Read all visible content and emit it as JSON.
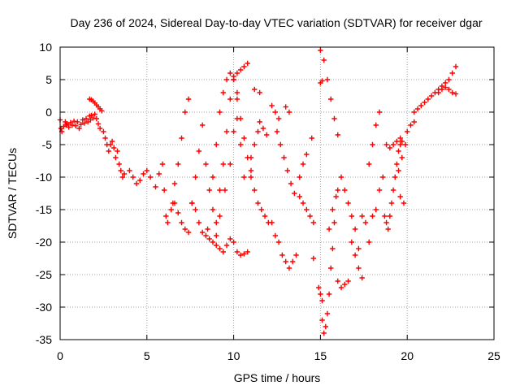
{
  "chart_data": {
    "type": "scatter",
    "title": "Day 236 of 2024, Sidereal Day-to-day VTEC variation (SDTVAR) for receiver dgar",
    "xlabel": "GPS time / hours",
    "ylabel": "SDTVAR / TECUs",
    "xlim": [
      0,
      25
    ],
    "ylim": [
      -35,
      10
    ],
    "xticks": [
      "0",
      "5",
      "10",
      "15",
      "20",
      "25"
    ],
    "yticks": [
      "10",
      "5",
      "0",
      "-5",
      "-10",
      "-15",
      "-20",
      "-25",
      "-30",
      "-35"
    ],
    "grid": true,
    "marker": "plus",
    "color": "#ff0000",
    "series": [
      {
        "x": [
          0.0,
          0.05,
          0.1,
          0.2,
          0.3,
          0.35,
          0.4,
          0.5,
          0.6,
          0.7,
          0.8,
          0.9,
          1.0,
          1.1,
          1.2,
          1.3,
          1.4,
          1.5,
          1.6,
          1.7,
          1.75,
          1.8,
          1.9,
          2.0,
          2.1,
          2.2,
          2.3
        ],
        "y": [
          -1.2,
          -2.5,
          -3.0,
          -2.2,
          -1.5,
          -2.0,
          -1.8,
          -2.3,
          -1.6,
          -2.0,
          -1.4,
          -2.1,
          -1.5,
          -2.5,
          -1.9,
          -1.2,
          -1.7,
          -1.0,
          -1.5,
          -0.6,
          -1.2,
          -0.5,
          -0.9,
          -0.3,
          -1.0,
          -1.8,
          -2.5
        ]
      },
      {
        "x": [
          1.7,
          1.8,
          1.9,
          2.0,
          2.1,
          2.2,
          2.3,
          2.4
        ],
        "y": [
          2.0,
          1.9,
          1.7,
          1.4,
          1.1,
          0.8,
          0.5,
          0.2
        ]
      },
      {
        "x": [
          2.5,
          2.6,
          2.7,
          2.8,
          2.9,
          3.0,
          3.1,
          3.2,
          3.3,
          3.4,
          3.5,
          3.6,
          3.7
        ],
        "y": [
          -3.0,
          -4.0,
          -5.0,
          -6.0,
          -5.0,
          -4.5,
          -5.5,
          -7.0,
          -6.0,
          -8.0,
          -9.0,
          -10.0,
          -9.5
        ]
      },
      {
        "x": [
          4.0,
          4.2,
          4.4,
          4.6,
          4.8,
          5.0,
          5.2,
          5.5,
          5.7,
          5.9
        ],
        "y": [
          -9.0,
          -10.0,
          -11.0,
          -10.5,
          -9.5,
          -9.0,
          -10.0,
          -11.5,
          -9.5,
          -8.0
        ]
      },
      {
        "x": [
          6.0,
          6.1,
          6.2,
          6.4,
          6.6,
          6.8,
          7.0,
          7.2,
          7.4,
          7.6,
          7.8,
          8.0,
          8.2,
          8.4,
          8.6,
          8.8,
          9.0,
          9.2,
          9.4,
          9.6,
          9.8,
          10.0,
          10.2,
          10.4,
          10.6,
          10.8
        ],
        "y": [
          -12.0,
          -16.0,
          -17.0,
          -15.0,
          -14.0,
          -15.5,
          -17.0,
          -18.0,
          -18.5,
          -14.0,
          -15.0,
          -17.0,
          -18.5,
          -19.0,
          -19.5,
          -20.0,
          -20.5,
          -21.0,
          -21.5,
          -20.5,
          -19.5,
          -20.0,
          -21.5,
          -22.0,
          -21.8,
          -21.5
        ]
      },
      {
        "x": [
          6.5,
          6.6,
          6.8,
          7.0,
          7.2,
          7.4
        ],
        "y": [
          -14.0,
          -11.0,
          -8.0,
          -4.0,
          0.0,
          2.0
        ]
      },
      {
        "x": [
          7.6,
          7.8,
          8.0,
          8.2,
          8.4,
          8.6,
          8.8,
          9.0,
          9.2,
          9.4,
          9.6,
          9.8,
          10.0,
          10.2,
          10.4,
          10.6,
          10.8
        ],
        "y": [
          -14.0,
          -10.0,
          -6.0,
          -2.0,
          -8.0,
          -12.0,
          -15.0,
          -17.0,
          -12.0,
          -8.0,
          -3.0,
          2.0,
          5.0,
          6.0,
          6.5,
          7.0,
          7.5
        ]
      },
      {
        "x": [
          8.5,
          8.8,
          9.0,
          9.2,
          9.4,
          9.6,
          9.8,
          10.0,
          10.2
        ],
        "y": [
          -18.0,
          -10.0,
          -5.0,
          0.0,
          3.0,
          5.0,
          6.0,
          5.5,
          3.0
        ]
      },
      {
        "x": [
          9.0,
          9.2,
          9.5,
          9.8,
          10.0,
          10.2,
          10.4,
          10.6
        ],
        "y": [
          -19.0,
          -16.0,
          -12.0,
          -8.0,
          -3.0,
          -1.0,
          -5.0,
          -10.0
        ]
      },
      {
        "x": [
          10.0,
          10.2,
          10.4,
          10.6,
          10.8,
          11.0
        ],
        "y": [
          5.0,
          2.0,
          -1.0,
          -4.0,
          -7.0,
          -9.0
        ]
      },
      {
        "x": [
          11.0,
          11.2,
          11.4,
          11.6,
          11.8,
          12.0
        ],
        "y": [
          -10.0,
          -12.0,
          -14.0,
          -15.0,
          -16.0,
          -17.0
        ]
      },
      {
        "x": [
          11.0,
          11.2,
          11.4
        ],
        "y": [
          -7.0,
          -5.0,
          -3.0
        ]
      },
      {
        "x": [
          11.2,
          11.5
        ],
        "y": [
          3.5,
          3.0
        ]
      },
      {
        "x": [
          11.5,
          11.7,
          11.9
        ],
        "y": [
          -1.5,
          -2.5,
          -3.5
        ]
      },
      {
        "x": [
          12.2,
          12.4,
          12.6,
          12.8,
          13.0,
          13.2,
          13.4,
          13.6
        ],
        "y": [
          -17.0,
          -19.0,
          -20.0,
          -22.0,
          -23.0,
          -24.0,
          -23.0,
          -22.0
        ]
      },
      {
        "x": [
          12.2,
          12.4,
          12.6
        ],
        "y": [
          1.0,
          0.0,
          -1.0
        ]
      },
      {
        "x": [
          12.5,
          12.7,
          12.9,
          13.1,
          13.3,
          13.5
        ],
        "y": [
          -3.0,
          -5.0,
          -7.0,
          -9.0,
          -11.0,
          -12.5
        ]
      },
      {
        "x": [
          13.0,
          13.2
        ],
        "y": [
          0.8,
          0.0
        ]
      },
      {
        "x": [
          13.8,
          14.0,
          14.2,
          14.4,
          14.6
        ],
        "y": [
          -13.0,
          -14.0,
          -15.0,
          -16.0,
          -17.0
        ]
      },
      {
        "x": [
          13.8,
          14.0,
          14.2
        ],
        "y": [
          -10.0,
          -8.0,
          -6.5
        ]
      },
      {
        "x": [
          14.5,
          14.6
        ],
        "y": [
          -4.0,
          -22.5
        ]
      },
      {
        "x": [
          14.9,
          15.0,
          15.1
        ],
        "y": [
          -27.0,
          -28.0,
          -29.0
        ]
      },
      {
        "x": [
          15.0,
          15.2,
          15.4,
          15.6,
          15.8,
          16.0
        ],
        "y": [
          9.5,
          8.0,
          5.0,
          2.0,
          -1.0,
          -3.5
        ]
      },
      {
        "x": [
          15.0,
          15.1
        ],
        "y": [
          4.5,
          4.8
        ]
      },
      {
        "x": [
          15.1,
          15.2,
          15.3,
          15.4,
          15.5,
          15.6,
          15.7,
          15.8
        ],
        "y": [
          -32.0,
          -34.0,
          -33.0,
          -31.0,
          -28.0,
          -24.0,
          -21.0,
          -17.0
        ]
      },
      {
        "x": [
          15.5,
          15.7,
          15.9,
          16.0
        ],
        "y": [
          -18.0,
          -15.0,
          -13.0,
          -12.0
        ]
      },
      {
        "x": [
          16.0,
          16.2,
          16.4,
          16.6
        ],
        "y": [
          -26.0,
          -27.0,
          -26.5,
          -26.0
        ]
      },
      {
        "x": [
          16.2,
          16.4,
          16.6,
          16.8,
          17.0,
          17.2
        ],
        "y": [
          -10.0,
          -12.0,
          -14.0,
          -16.0,
          -18.0,
          -21.0
        ]
      },
      {
        "x": [
          16.8,
          17.0,
          17.2,
          17.4
        ],
        "y": [
          -20.0,
          -22.0,
          -24.0,
          -25.5
        ]
      },
      {
        "x": [
          17.4,
          17.6,
          17.8
        ],
        "y": [
          -16.0,
          -17.0,
          -20.0
        ]
      },
      {
        "x": [
          18.0,
          18.2
        ],
        "y": [
          -16.0,
          -15.0
        ]
      },
      {
        "x": [
          17.8,
          18.0,
          18.2,
          18.4
        ],
        "y": [
          -8.0,
          -5.0,
          -2.0,
          0.0
        ]
      },
      {
        "x": [
          18.4,
          18.6
        ],
        "y": [
          -12.0,
          -10.0
        ]
      },
      {
        "x": [
          18.7,
          18.8,
          18.9,
          19.0,
          19.1,
          19.2,
          19.3,
          19.4,
          19.5,
          19.6,
          19.7
        ],
        "y": [
          -16.0,
          -17.0,
          -18.0,
          -16.0,
          -14.0,
          -12.0,
          -10.0,
          -8.0,
          -6.0,
          -5.0,
          -4.5
        ]
      },
      {
        "x": [
          18.8,
          19.0,
          19.2,
          19.4,
          19.6
        ],
        "y": [
          -5.0,
          -5.5,
          -5.0,
          -4.5,
          -4.0
        ]
      },
      {
        "x": [
          19.5,
          19.7,
          19.9,
          20.0,
          20.2,
          20.4
        ],
        "y": [
          -9.0,
          -7.0,
          -5.0,
          -3.0,
          -2.0,
          -1.5
        ]
      },
      {
        "x": [
          19.6,
          19.8
        ],
        "y": [
          -13.0,
          -14.0
        ]
      },
      {
        "x": [
          20.4,
          20.6,
          20.8,
          21.0,
          21.2,
          21.4,
          21.6,
          21.8,
          22.0,
          22.2,
          22.4,
          22.6,
          22.8
        ],
        "y": [
          0.0,
          0.5,
          1.0,
          1.5,
          2.0,
          2.5,
          3.0,
          3.5,
          4.0,
          4.5,
          5.0,
          6.0,
          7.0
        ]
      },
      {
        "x": [
          21.8,
          22.0,
          22.2,
          22.4,
          22.6,
          22.8
        ],
        "y": [
          3.0,
          3.5,
          3.8,
          3.5,
          3.0,
          2.8
        ]
      }
    ]
  }
}
